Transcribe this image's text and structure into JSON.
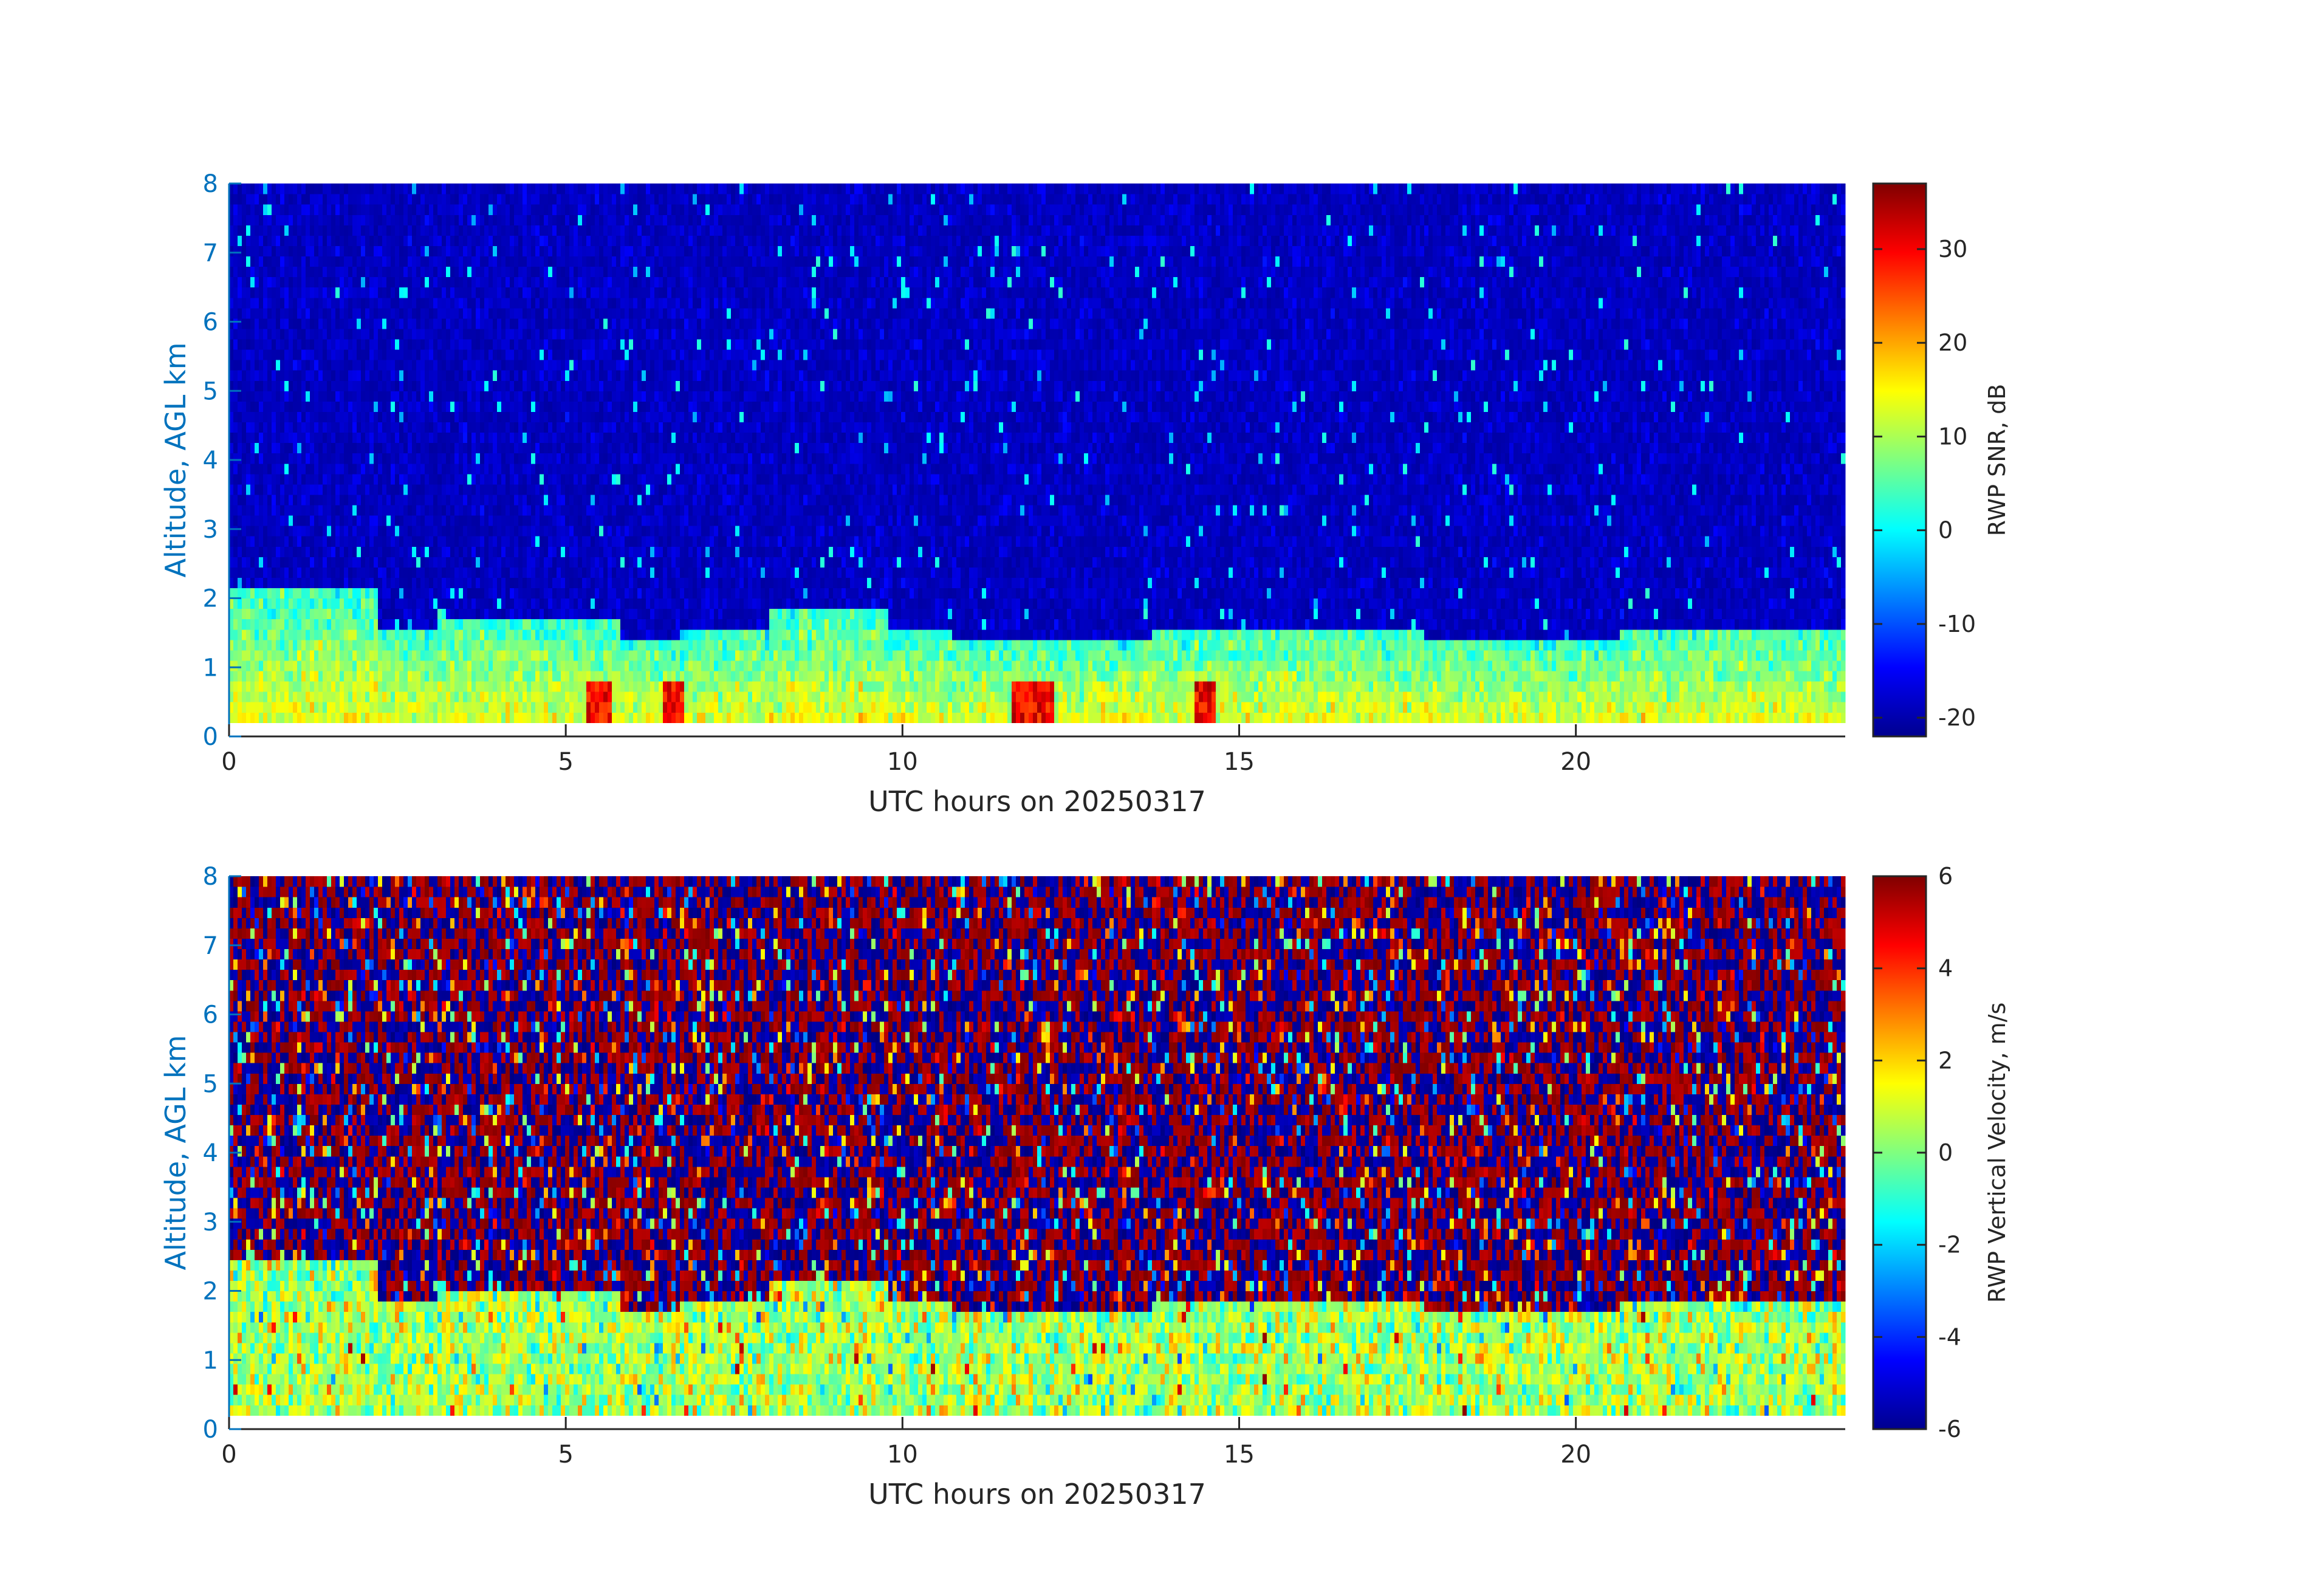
{
  "chart_data": [
    {
      "type": "heatmap",
      "variable": "RWP SNR",
      "xlabel": "UTC hours on 20250317",
      "ylabel": "Altitude, AGL km",
      "xlim": [
        0,
        24
      ],
      "ylim": [
        0,
        8
      ],
      "xticks": [
        "0",
        "5",
        "10",
        "15",
        "20"
      ],
      "yticks": [
        "0",
        "1",
        "2",
        "3",
        "4",
        "5",
        "6",
        "7",
        "8"
      ],
      "colorbar": {
        "label": "RWP SNR, dB",
        "limits": [
          -22,
          37
        ],
        "ticks": [
          "-20",
          "-10",
          "0",
          "10",
          "20",
          "30"
        ],
        "colormap": "jet"
      },
      "data_start_altitude_km": 0.2,
      "typical_values": {
        "boundary_layer_dB": [
          0,
          15
        ],
        "peaks_dB": [
          25,
          35
        ],
        "upper_background_dB": -20,
        "boundary_layer_top_km": 1.5,
        "peak_hours": [
          5.5,
          6.6,
          11.8,
          12.1,
          14.5
        ]
      }
    },
    {
      "type": "heatmap",
      "variable": "RWP Vertical Velocity",
      "xlabel": "UTC hours on 20250317",
      "ylabel": "Altitude, AGL km",
      "xlim": [
        0,
        24
      ],
      "ylim": [
        0,
        8
      ],
      "xticks": [
        "0",
        "5",
        "10",
        "15",
        "20"
      ],
      "yticks": [
        "0",
        "1",
        "2",
        "3",
        "4",
        "5",
        "6",
        "7",
        "8"
      ],
      "colorbar": {
        "label": "RWP Vertical Velocity, m/s",
        "limits": [
          -6,
          6
        ],
        "ticks": [
          "-6",
          "-4",
          "-2",
          "0",
          "2",
          "4",
          "6"
        ],
        "colormap": "jet"
      },
      "data_start_altitude_km": 0.2,
      "typical_values": {
        "boundary_layer_m_s": [
          -2,
          2
        ],
        "upper_noise_m_s": [
          -6,
          6
        ],
        "boundary_layer_top_km": 2.0
      }
    }
  ]
}
